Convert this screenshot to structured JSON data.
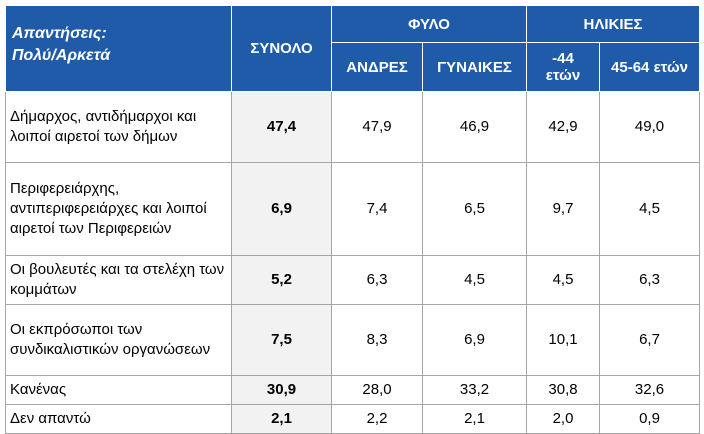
{
  "header": {
    "corner_line1": "Απαντήσεις:",
    "corner_line2": "Πολύ/Αρκετά",
    "total": "ΣΥΝΟΛΟ",
    "gender_group": "ΦΥΛΟ",
    "age_group": "ΗΛΙΚΙΕΣ",
    "men": "ΑΝΔΡΕΣ",
    "women": "ΓΥΝΑΙΚΕΣ",
    "age_young_line1": "-44",
    "age_young_line2": "ετών",
    "age_mid": "45-64 ετών"
  },
  "rows": [
    {
      "label": "Δήμαρχος, αντιδήμαρχοι και λοιποί αιρετοί των δήμων",
      "total": "47,4",
      "men": "47,9",
      "women": "46,9",
      "age_young": "42,9",
      "age_mid": "49,0"
    },
    {
      "label": "Περιφερειάρχης, αντιπεριφερειάρχες και λοιποί αιρετοί των Περιφερειών",
      "total": "6,9",
      "men": "7,4",
      "women": "6,5",
      "age_young": "9,7",
      "age_mid": "4,5"
    },
    {
      "label": "Οι βουλευτές και τα στελέχη των κομμάτων",
      "total": "5,2",
      "men": "6,3",
      "women": "4,5",
      "age_young": "4,5",
      "age_mid": "6,3"
    },
    {
      "label": "Οι εκπρόσωποι των συνδικαλιστικών οργανώσεων",
      "total": "7,5",
      "men": "8,3",
      "women": "6,9",
      "age_young": "10,1",
      "age_mid": "6,7"
    },
    {
      "label": "Κανένας",
      "total": "30,9",
      "men": "28,0",
      "women": "33,2",
      "age_young": "30,8",
      "age_mid": "32,6"
    },
    {
      "label": "Δεν απαντώ",
      "total": "2,1",
      "men": "2,2",
      "women": "2,1",
      "age_young": "2,0",
      "age_mid": "0,9"
    }
  ],
  "colors": {
    "header_bg": "#1f5ba8",
    "total_bg": "#f2f2f2"
  }
}
